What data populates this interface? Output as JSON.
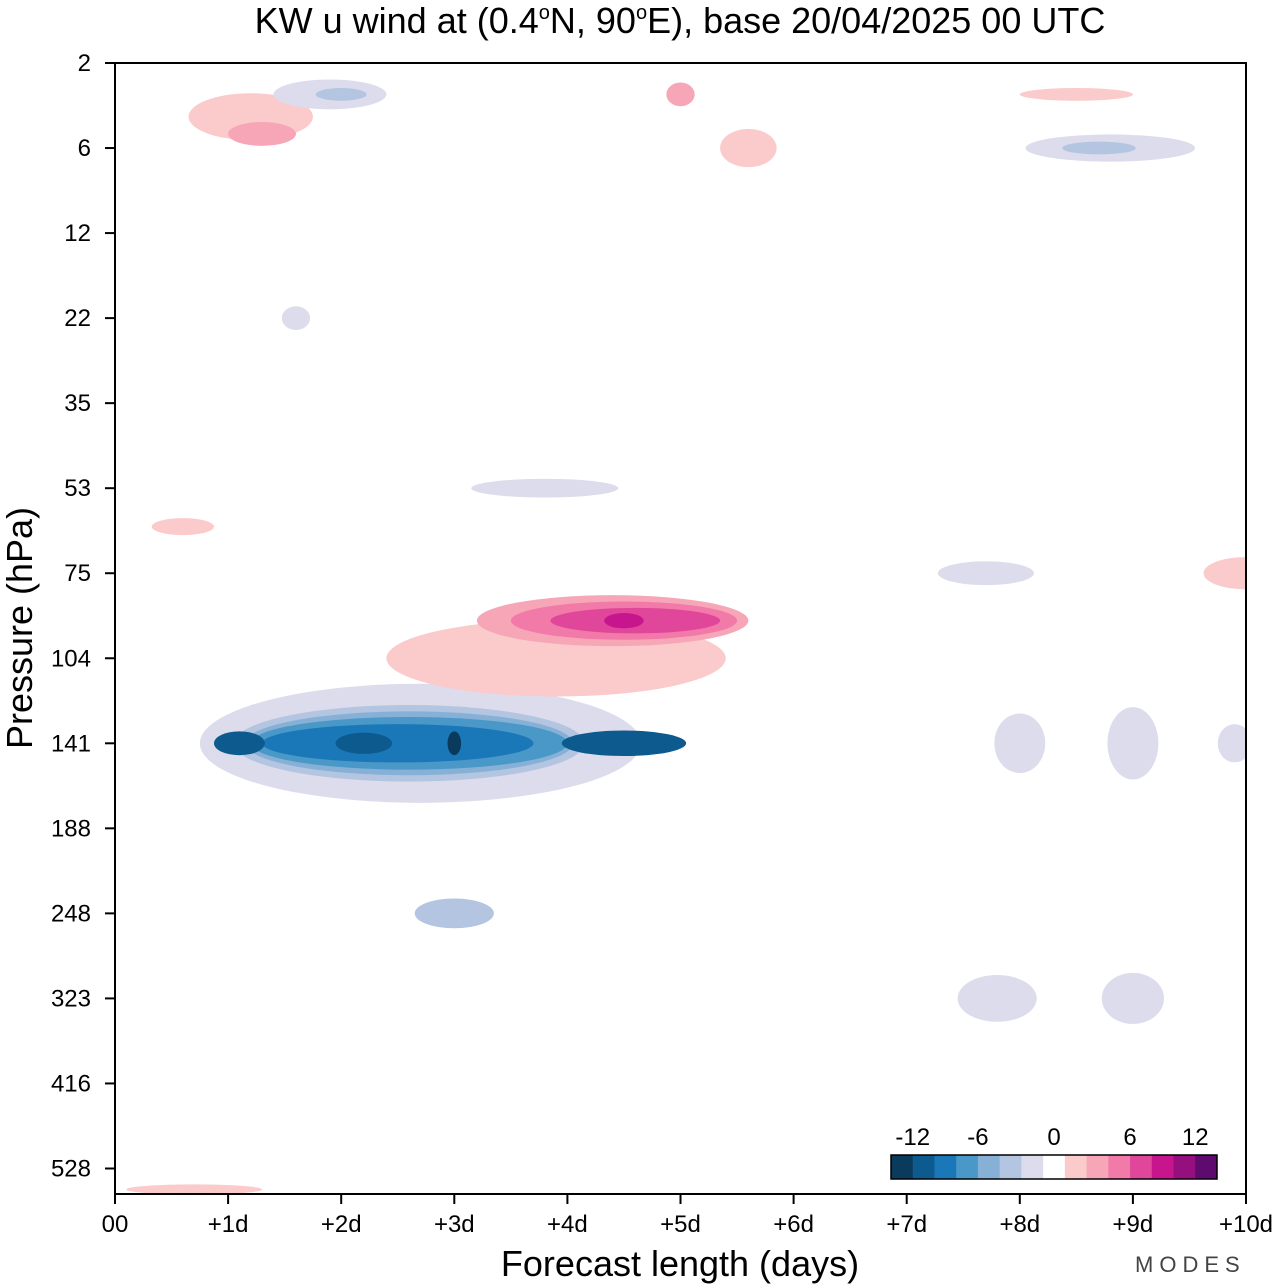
{
  "chart_data": {
    "type": "heatmap",
    "title": "KW u wind at (0.4°N, 90°E),  base 20/04/2025  00 UTC",
    "title_parts": {
      "part1": "KW u wind at (0.4",
      "deg": "o",
      "part2": "N, 90",
      "part3": "E),  base 20/04/2025  00 UTC"
    },
    "xlabel": "Forecast length (days)",
    "ylabel": "Pressure (hPa)",
    "x_ticks": [
      "00",
      "+1d",
      "+2d",
      "+3d",
      "+4d",
      "+5d",
      "+6d",
      "+7d",
      "+8d",
      "+9d",
      "+10d"
    ],
    "xlim": [
      0,
      10
    ],
    "y_ticks": [
      "2",
      "6",
      "12",
      "22",
      "35",
      "53",
      "75",
      "104",
      "141",
      "188",
      "248",
      "323",
      "416",
      "528"
    ],
    "y_scale": "pressure levels, top = 2 hPa, bottom = 528 hPa",
    "grid": false,
    "colorbar": {
      "labels": [
        "-12",
        "-6",
        "0",
        "6",
        "12"
      ],
      "levels": [
        -14,
        -12,
        -10,
        -8,
        -6,
        -4,
        -2,
        0,
        2,
        4,
        6,
        8,
        10,
        12,
        14
      ],
      "colors": [
        "#0b3b5c",
        "#0d5a8e",
        "#1a78b8",
        "#4a98c8",
        "#86b0d5",
        "#b3c5e0",
        "#dcdcec",
        "#ffffff",
        "#fbcaca",
        "#f7a6b8",
        "#f27aa8",
        "#e0479a",
        "#c7168d",
        "#950f7e",
        "#5e0a6e"
      ],
      "placement": "bottom-right"
    },
    "contours": [
      {
        "level": -2,
        "day": 2.7,
        "p": 141,
        "dx": 3.9,
        "dy": 1.4
      },
      {
        "level": -4,
        "day": 2.6,
        "p": 141,
        "dx": 3.1,
        "dy": 0.9
      },
      {
        "level": -6,
        "day": 2.6,
        "p": 141,
        "dx": 2.9,
        "dy": 0.75
      },
      {
        "level": -8,
        "day": 2.6,
        "p": 141,
        "dx": 2.8,
        "dy": 0.62
      },
      {
        "level": -10,
        "day": 2.5,
        "p": 141,
        "dx": 2.4,
        "dy": 0.45
      },
      {
        "level": -12,
        "day": 1.1,
        "p": 141,
        "dx": 0.45,
        "dy": 0.28
      },
      {
        "level": -12,
        "day": 2.2,
        "p": 141,
        "dx": 0.5,
        "dy": 0.25
      },
      {
        "level": -12,
        "day": 4.5,
        "p": 141,
        "dx": 1.1,
        "dy": 0.3
      },
      {
        "level": -14,
        "day": 3.0,
        "p": 141,
        "dx": 0.12,
        "dy": 0.28
      },
      {
        "level": 2,
        "day": 3.9,
        "p": 104,
        "dx": 3.0,
        "dy": 0.9
      },
      {
        "level": 4,
        "day": 4.4,
        "p": 90,
        "dx": 2.4,
        "dy": 0.6
      },
      {
        "level": 6,
        "day": 4.5,
        "p": 90,
        "dx": 2.0,
        "dy": 0.45
      },
      {
        "level": 8,
        "day": 4.6,
        "p": 90,
        "dx": 1.5,
        "dy": 0.3
      },
      {
        "level": 10,
        "day": 4.5,
        "p": 90,
        "dx": 0.35,
        "dy": 0.18
      },
      {
        "level": -2,
        "day": 8.0,
        "p": 141,
        "dx": 0.45,
        "dy": 0.7
      },
      {
        "level": -2,
        "day": 9.0,
        "p": 141,
        "dx": 0.45,
        "dy": 0.85
      },
      {
        "level": -2,
        "day": 9.9,
        "p": 141,
        "dx": 0.3,
        "dy": 0.45
      },
      {
        "level": -2,
        "day": 7.8,
        "p": 323,
        "dx": 0.7,
        "dy": 0.55
      },
      {
        "level": -2,
        "day": 9.0,
        "p": 323,
        "dx": 0.55,
        "dy": 0.6
      },
      {
        "level": -2,
        "day": 7.7,
        "p": 75,
        "dx": 0.85,
        "dy": 0.28
      },
      {
        "level": -2,
        "day": 3.8,
        "p": 53,
        "dx": 1.3,
        "dy": 0.22
      },
      {
        "level": 2,
        "day": 10.0,
        "p": 75,
        "dx": 0.75,
        "dy": 0.38
      },
      {
        "level": -4,
        "day": 3.0,
        "p": 248,
        "dx": 0.7,
        "dy": 0.35
      },
      {
        "level": 2,
        "day": 1.2,
        "p": 4,
        "dx": 1.1,
        "dy": 0.55
      },
      {
        "level": 4,
        "day": 1.3,
        "p": 5,
        "dx": 0.6,
        "dy": 0.28
      },
      {
        "level": -2,
        "day": 1.9,
        "p": 3,
        "dx": 1.0,
        "dy": 0.35
      },
      {
        "level": -4,
        "day": 2.0,
        "p": 3,
        "dx": 0.45,
        "dy": 0.15
      },
      {
        "level": 2,
        "day": 5.6,
        "p": 6,
        "dx": 0.5,
        "dy": 0.45
      },
      {
        "level": 4,
        "day": 5.0,
        "p": 3,
        "dx": 0.25,
        "dy": 0.28
      },
      {
        "level": 2,
        "day": 8.5,
        "p": 3,
        "dx": 1.0,
        "dy": 0.15
      },
      {
        "level": -2,
        "day": 8.8,
        "p": 6,
        "dx": 1.5,
        "dy": 0.32
      },
      {
        "level": -4,
        "day": 8.7,
        "p": 6,
        "dx": 0.65,
        "dy": 0.15
      },
      {
        "level": -2,
        "day": 1.6,
        "p": 22,
        "dx": 0.25,
        "dy": 0.28
      },
      {
        "level": 2,
        "day": 0.6,
        "p": 62,
        "dx": 0.55,
        "dy": 0.2
      },
      {
        "level": 2,
        "day": 0.7,
        "p": 560,
        "dx": 1.2,
        "dy": 0.12
      }
    ]
  },
  "watermark": "MODES"
}
